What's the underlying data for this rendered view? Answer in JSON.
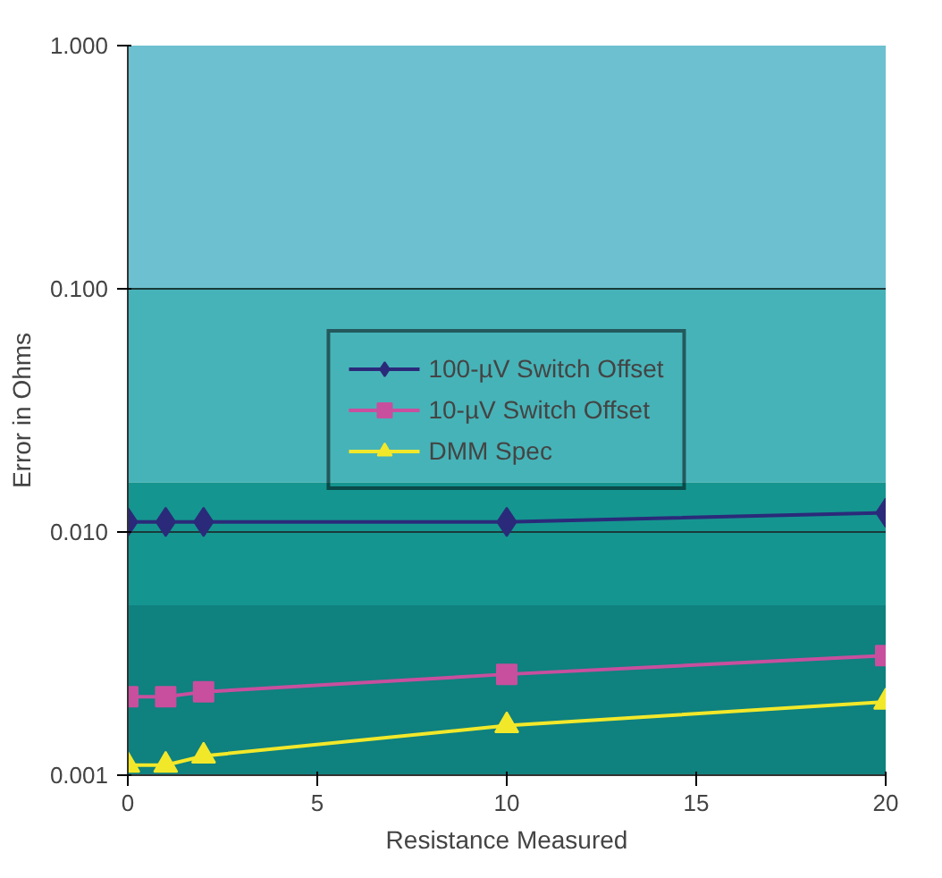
{
  "chart_data": {
    "type": "line",
    "xlabel": "Resistance Measured",
    "ylabel": "Error in Ohms",
    "x": [
      0,
      1,
      2,
      10,
      20
    ],
    "series": [
      {
        "name": "100-µV Switch Offset",
        "color": "#2b2a7a",
        "marker": "diamond",
        "values": [
          0.011,
          0.011,
          0.011,
          0.011,
          0.012
        ]
      },
      {
        "name": "10-µV Switch Offset",
        "color": "#c84f9e",
        "marker": "square",
        "values": [
          0.0021,
          0.0021,
          0.0022,
          0.0026,
          0.0031
        ]
      },
      {
        "name": "DMM Spec",
        "color": "#f2e82a",
        "marker": "triangle",
        "values": [
          0.0011,
          0.0011,
          0.0012,
          0.0016,
          0.002
        ]
      }
    ],
    "log": "y",
    "xlim": [
      0,
      20
    ],
    "ylim": [
      0.001,
      1
    ],
    "xticks": [
      0,
      5,
      10,
      15,
      20
    ],
    "yticks": [
      {
        "value": 0.001,
        "label": "0.001"
      },
      {
        "value": 0.01,
        "label": "0.010"
      },
      {
        "value": 0.1,
        "label": "0.100"
      },
      {
        "value": 1,
        "label": "1.000"
      }
    ],
    "bands": [
      {
        "axis": "y",
        "from": 0.1,
        "to": 1,
        "color": "#6cc0cf"
      },
      {
        "axis": "y",
        "from": 0.016,
        "to": 0.1,
        "color": "#46b3b8"
      },
      {
        "axis": "y",
        "from": 0.005,
        "to": 0.016,
        "color": "#159590"
      },
      {
        "axis": "y",
        "from": 0.001,
        "to": 0.005,
        "color": "#0f817f"
      }
    ],
    "grid": "y",
    "legend": "center",
    "line_style": "solid"
  }
}
